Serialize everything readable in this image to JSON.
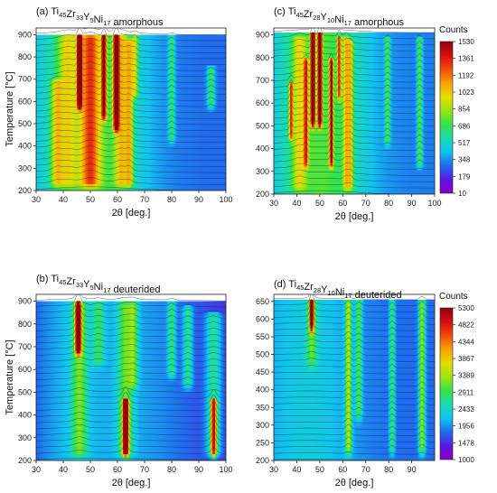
{
  "colorscale": [
    "#8a00c8",
    "#5a18e0",
    "#1f6cf0",
    "#10c4f2",
    "#18dcae",
    "#34e24a",
    "#9ee412",
    "#e6dc00",
    "#f7a100",
    "#f24a0a",
    "#d80c12",
    "#8c0410"
  ],
  "chart_data": [
    {
      "type": "heatmap",
      "panel": "a",
      "title": {
        "prefix": "(a) ",
        "formula": [
          [
            "Ti",
            "45"
          ],
          [
            "Zr",
            "33"
          ],
          [
            "Y",
            "5"
          ],
          [
            "Ni",
            "17"
          ]
        ],
        "suffix": " amorphous"
      },
      "xlabel": "2θ [deg.]",
      "ylabel": "Temperature [°C]",
      "xlim": [
        30,
        100
      ],
      "ylim": [
        200,
        930
      ],
      "xticks": [
        30,
        40,
        50,
        60,
        70,
        80,
        90,
        100
      ],
      "yticks": [
        200,
        300,
        400,
        500,
        600,
        700,
        800,
        900
      ],
      "top_temperature": 900,
      "level": 0.18,
      "peaks": [
        {
          "x": 37.5,
          "width": 1.5,
          "amp": 0.24,
          "range": [
            200,
            700
          ]
        },
        {
          "x": 41.5,
          "width": 2.5,
          "amp": 0.22,
          "range": [
            200,
            900
          ]
        },
        {
          "x": 46,
          "width": 0.6,
          "amp": 0.7,
          "range": [
            550,
            930
          ]
        },
        {
          "x": 50,
          "width": 2.5,
          "amp": 0.38,
          "range": [
            200,
            900
          ]
        },
        {
          "x": 55,
          "width": 0.6,
          "amp": 0.6,
          "range": [
            500,
            930
          ]
        },
        {
          "x": 59.5,
          "width": 0.7,
          "amp": 0.65,
          "range": [
            450,
            930
          ]
        },
        {
          "x": 61.5,
          "width": 1.8,
          "amp": 0.3,
          "range": [
            200,
            900
          ]
        },
        {
          "x": 64.5,
          "width": 1.0,
          "amp": 0.28,
          "range": [
            200,
            880
          ]
        },
        {
          "x": 66.5,
          "width": 0.8,
          "amp": 0.26,
          "range": [
            600,
            900
          ]
        },
        {
          "x": 80,
          "width": 0.8,
          "amp": 0.22,
          "range": [
            400,
            900
          ]
        },
        {
          "x": 94.5,
          "width": 1.0,
          "amp": 0.25,
          "range": [
            550,
            760
          ]
        }
      ],
      "bumps": [
        {
          "x": 50,
          "width": 14,
          "amp": 0.3
        }
      ]
    },
    {
      "type": "heatmap",
      "panel": "b",
      "title": {
        "prefix": "(b) ",
        "formula": [
          [
            "Ti",
            "45"
          ],
          [
            "Zr",
            "33"
          ],
          [
            "Y",
            "5"
          ],
          [
            "Ni",
            "17"
          ]
        ],
        "suffix": " deuterided"
      },
      "xlabel": "2θ [deg.]",
      "ylabel": "Temperature [°C]",
      "xlim": [
        30,
        100
      ],
      "ylim": [
        200,
        930
      ],
      "xticks": [
        30,
        40,
        50,
        60,
        70,
        80,
        90,
        100
      ],
      "yticks": [
        200,
        300,
        400,
        500,
        600,
        700,
        800,
        900
      ],
      "top_temperature": 900,
      "level": 0.1,
      "peaks": [
        {
          "x": 45.5,
          "width": 0.8,
          "amp": 0.7,
          "range": [
            650,
            900
          ]
        },
        {
          "x": 46,
          "width": 2.0,
          "amp": 0.25,
          "range": [
            200,
            900
          ]
        },
        {
          "x": 53,
          "width": 1.5,
          "amp": 0.18,
          "range": [
            600,
            900
          ]
        },
        {
          "x": 63,
          "width": 0.8,
          "amp": 0.7,
          "range": [
            200,
            480
          ]
        },
        {
          "x": 63,
          "width": 2.0,
          "amp": 0.25,
          "range": [
            200,
            900
          ]
        },
        {
          "x": 66,
          "width": 1.2,
          "amp": 0.2,
          "range": [
            500,
            900
          ]
        },
        {
          "x": 80,
          "width": 1.0,
          "amp": 0.22,
          "range": [
            550,
            900
          ]
        },
        {
          "x": 86,
          "width": 1.2,
          "amp": 0.22,
          "range": [
            500,
            880
          ]
        },
        {
          "x": 95.5,
          "width": 0.8,
          "amp": 0.55,
          "range": [
            200,
            480
          ]
        },
        {
          "x": 95.5,
          "width": 2.0,
          "amp": 0.25,
          "range": [
            200,
            850
          ]
        }
      ],
      "bumps": [
        {
          "x": 62,
          "width": 20,
          "amp": 0.15
        },
        {
          "x": 40,
          "width": 8,
          "amp": 0.08
        }
      ]
    },
    {
      "type": "heatmap",
      "panel": "c",
      "title": {
        "prefix": "(c) ",
        "formula": [
          [
            "Ti",
            "45"
          ],
          [
            "Zr",
            "28"
          ],
          [
            "Y",
            "10"
          ],
          [
            "Ni",
            "17"
          ]
        ],
        "suffix": " amorphous"
      },
      "xlabel": "2θ [deg.]",
      "ylabel": "",
      "xlim": [
        30,
        100
      ],
      "ylim": [
        200,
        930
      ],
      "xticks": [
        30,
        40,
        50,
        60,
        70,
        80,
        90,
        100
      ],
      "yticks": [
        200,
        300,
        400,
        500,
        600,
        700,
        800,
        900
      ],
      "top_temperature": 910,
      "level": 0.2,
      "colorbar": {
        "title": "Counts",
        "ticks": [
          "1530",
          "1361",
          "1192",
          "1023",
          "854",
          "686",
          "517",
          "348",
          "179",
          "10"
        ]
      },
      "peaks": [
        {
          "x": 37.5,
          "width": 0.6,
          "amp": 0.45,
          "range": [
            420,
            700
          ]
        },
        {
          "x": 41,
          "width": 2.0,
          "amp": 0.22,
          "range": [
            200,
            900
          ]
        },
        {
          "x": 44,
          "width": 0.7,
          "amp": 0.4,
          "range": [
            300,
            800
          ]
        },
        {
          "x": 47,
          "width": 0.6,
          "amp": 0.85,
          "range": [
            480,
            930
          ]
        },
        {
          "x": 50,
          "width": 0.6,
          "amp": 0.85,
          "range": [
            480,
            930
          ]
        },
        {
          "x": 55,
          "width": 0.6,
          "amp": 0.55,
          "range": [
            300,
            800
          ]
        },
        {
          "x": 58.5,
          "width": 0.6,
          "amp": 0.45,
          "range": [
            600,
            900
          ]
        },
        {
          "x": 61.5,
          "width": 1.0,
          "amp": 0.3,
          "range": [
            200,
            900
          ]
        },
        {
          "x": 63.5,
          "width": 0.8,
          "amp": 0.28,
          "range": [
            200,
            880
          ]
        },
        {
          "x": 79.5,
          "width": 0.8,
          "amp": 0.25,
          "range": [
            400,
            900
          ]
        },
        {
          "x": 93.5,
          "width": 0.8,
          "amp": 0.28,
          "range": [
            300,
            900
          ]
        }
      ],
      "bumps": [
        {
          "x": 50,
          "width": 14,
          "amp": 0.28
        }
      ]
    },
    {
      "type": "heatmap",
      "panel": "d",
      "title": {
        "prefix": "(d) ",
        "formula": [
          [
            "Ti",
            "45"
          ],
          [
            "Zr",
            "28"
          ],
          [
            "Y",
            "10"
          ],
          [
            "Ni",
            "17"
          ]
        ],
        "suffix": " deuterided"
      },
      "xlabel": "2θ [deg.]",
      "ylabel": "",
      "xlim": [
        30,
        100
      ],
      "ylim": [
        200,
        670
      ],
      "xticks": [
        30,
        40,
        50,
        60,
        70,
        80,
        90
      ],
      "yticks": [
        200,
        250,
        300,
        350,
        400,
        450,
        500,
        550,
        600,
        650
      ],
      "top_temperature": 655,
      "level": 0.18,
      "colorbar": {
        "title": "Counts",
        "ticks": [
          "5300",
          "4822",
          "4344",
          "3867",
          "3389",
          "2911",
          "2433",
          "1956",
          "1478",
          "1000"
        ]
      },
      "peaks": [
        {
          "x": 46.5,
          "width": 0.6,
          "amp": 0.8,
          "range": [
            550,
            670
          ]
        },
        {
          "x": 46.5,
          "width": 1.5,
          "amp": 0.2,
          "range": [
            450,
            660
          ]
        },
        {
          "x": 62.5,
          "width": 1.0,
          "amp": 0.35,
          "range": [
            200,
            660
          ]
        },
        {
          "x": 67,
          "width": 1.0,
          "amp": 0.25,
          "range": [
            300,
            660
          ]
        },
        {
          "x": 81.5,
          "width": 0.8,
          "amp": 0.25,
          "range": [
            200,
            660
          ]
        },
        {
          "x": 94.5,
          "width": 1.0,
          "amp": 0.35,
          "range": [
            200,
            660
          ]
        }
      ],
      "bumps": [
        {
          "x": 45,
          "width": 15,
          "amp": 0.12
        }
      ]
    }
  ]
}
